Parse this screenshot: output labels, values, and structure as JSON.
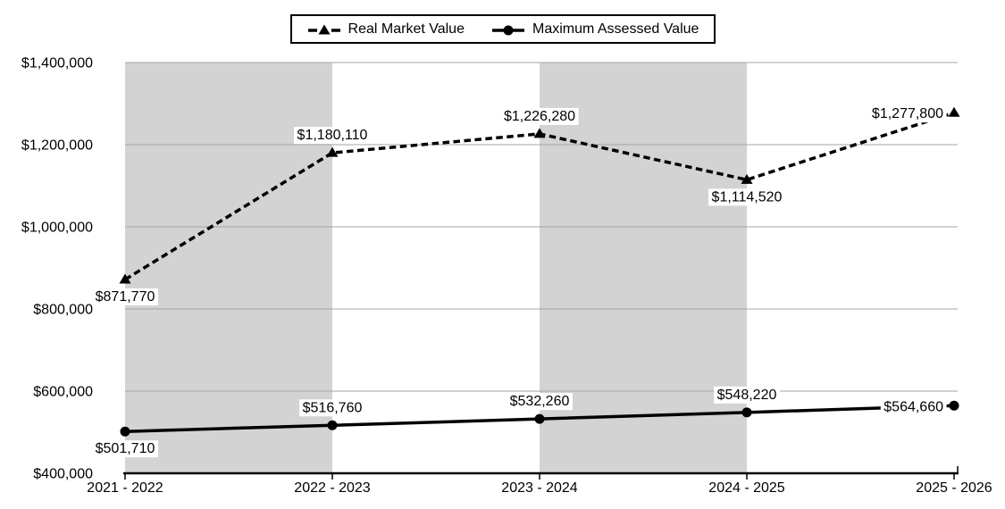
{
  "legend": {
    "items": [
      {
        "label": "Real Market Value",
        "marker": "dashed-line-triangle"
      },
      {
        "label": "Maximum Assessed Value",
        "marker": "solid-line-circle"
      }
    ]
  },
  "chart_data": {
    "type": "line",
    "title": "",
    "xlabel": "",
    "ylabel": "",
    "categories": [
      "2021 - 2022",
      "2022 - 2023",
      "2023 - 2024",
      "2024 - 2025",
      "2025 - 2026"
    ],
    "series": [
      {
        "name": "Real Market Value",
        "line_style": "dashed",
        "marker": "triangle",
        "color": "#000000",
        "values": [
          871770,
          1180110,
          1226280,
          1114520,
          1277800
        ],
        "data_labels": [
          "$871,770",
          "$1,180,110",
          "$1,226,280",
          "$1,114,520",
          "$1,277,800"
        ],
        "label_placements": [
          "below",
          "above",
          "above",
          "below",
          "left"
        ]
      },
      {
        "name": "Maximum Assessed Value",
        "line_style": "solid",
        "marker": "circle",
        "color": "#000000",
        "values": [
          501710,
          516760,
          532260,
          548220,
          564660
        ],
        "data_labels": [
          "$501,710",
          "$516,760",
          "$532,260",
          "$548,220",
          "$564,660"
        ],
        "label_placements": [
          "below",
          "above",
          "above",
          "above",
          "left"
        ]
      }
    ],
    "y_axis": {
      "min": 400000,
      "max": 1400000,
      "step": 200000,
      "tick_labels": [
        "$400,000",
        "$600,000",
        "$800,000",
        "$1,000,000",
        "$1,200,000",
        "$1,400,000"
      ]
    },
    "layout_hints": {
      "legend_position": "top-center",
      "grid": "horizontal",
      "alternating_vertical_bands": true
    },
    "colors": {
      "band_fill": "#d3d3d3",
      "band_alt_fill": "#ffffff",
      "gridline": "#a6a6a6",
      "axis": "#000000",
      "label_background": "#ffffff"
    }
  }
}
